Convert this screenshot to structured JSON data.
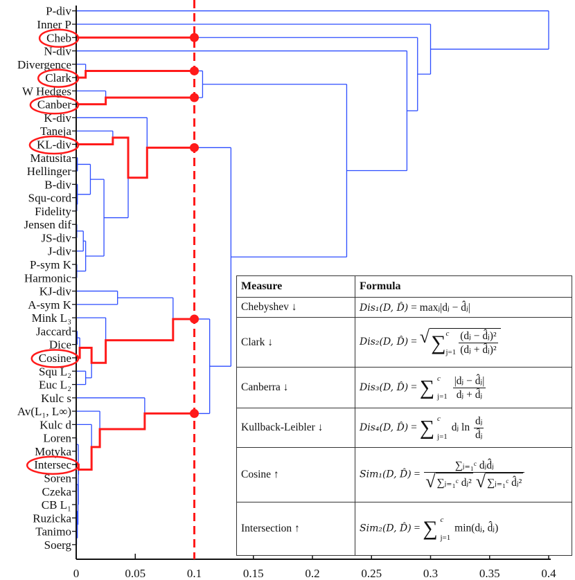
{
  "chart_data": {
    "type": "dendrogram",
    "orientation": "horizontal",
    "xlim": [
      0,
      0.4
    ],
    "xticks": [
      0,
      0.05,
      0.1,
      0.15,
      0.2,
      0.25,
      0.3,
      0.35,
      0.4
    ],
    "xtick_labels": [
      "0",
      "0.05",
      "0.1",
      "0.15",
      "0.2",
      "0.25",
      "0.3",
      "0.35",
      "0.4"
    ],
    "cutoff": 0.1,
    "line_color": "#2b4cff",
    "highlight_color": "#ff1a1a",
    "leaves": [
      "P-div",
      "Inner P",
      "Cheb",
      "N-div",
      "Divergence",
      "Clark",
      "W Hedges",
      "Canber",
      "K-div",
      "Taneja",
      "KL-div",
      "Matusita",
      "Hellinger",
      "B-div",
      "Squ-cord",
      "Fidelity",
      "Jensen  dif",
      "JS-div",
      "J-div",
      "P-sym  K",
      "Harmonic",
      "KJ-div",
      "A-sym  K",
      "Mink  L₃",
      "Jaccard",
      "Dice",
      "Cosine",
      "Squ  L₂",
      "Euc  L₂",
      "Kulc  s",
      "Av(L₁,  L∞)",
      "Kulc  d",
      "Loren",
      "Motyka",
      "Intersec",
      "Soren",
      "Czeka",
      "CB  L₁",
      "Ruzicka",
      "Tanimo",
      "Soerg"
    ],
    "highlighted": [
      "Cheb",
      "Clark",
      "Canber",
      "KL-div",
      "Cosine",
      "Intersec"
    ],
    "merges": [
      {
        "id": "c1",
        "children": [
          "Divergence",
          "Clark"
        ],
        "height": 0.008
      },
      {
        "id": "c2",
        "children": [
          "W Hedges",
          "Canber"
        ],
        "height": 0.025
      },
      {
        "id": "c3",
        "children": [
          "c1",
          "c2"
        ],
        "height": 0.107
      },
      {
        "id": "c4",
        "children": [
          "Taneja",
          "KL-div"
        ],
        "height": 0.031
      },
      {
        "id": "c5",
        "children": [
          "Matusita",
          "Hellinger"
        ],
        "height": 0.001
      },
      {
        "id": "c6",
        "children": [
          "Squ-cord",
          "Fidelity"
        ],
        "height": 0.0005
      },
      {
        "id": "c7",
        "children": [
          "B-div",
          "c6"
        ],
        "height": 0.001
      },
      {
        "id": "c8",
        "children": [
          "c5",
          "c7"
        ],
        "height": 0.012
      },
      {
        "id": "c9",
        "children": [
          "Jensen  dif",
          "JS-div"
        ],
        "height": 0.0005
      },
      {
        "id": "c10",
        "children": [
          "c9",
          "J-div"
        ],
        "height": 0.006
      },
      {
        "id": "c11",
        "children": [
          "P-sym  K",
          "Harmonic"
        ],
        "height": 0.0005
      },
      {
        "id": "c12",
        "children": [
          "c10",
          "c11"
        ],
        "height": 0.008
      },
      {
        "id": "c13",
        "children": [
          "c8",
          "c12"
        ],
        "height": 0.0235
      },
      {
        "id": "c14",
        "children": [
          "c4",
          "c13"
        ],
        "height": 0.044
      },
      {
        "id": "c15",
        "children": [
          "K-div",
          "c14"
        ],
        "height": 0.06
      },
      {
        "id": "c16",
        "children": [
          "KJ-div",
          "A-sym  K"
        ],
        "height": 0.035
      },
      {
        "id": "c17",
        "children": [
          "Jaccard",
          "Dice"
        ],
        "height": 0.0008
      },
      {
        "id": "c18",
        "children": [
          "c17",
          "Cosine"
        ],
        "height": 0.003
      },
      {
        "id": "c19",
        "children": [
          "Squ  L₂",
          "Euc  L₂"
        ],
        "height": 0.008
      },
      {
        "id": "c20",
        "children": [
          "c18",
          "c19"
        ],
        "height": 0.013
      },
      {
        "id": "c21",
        "children": [
          "Mink  L₃",
          "c20"
        ],
        "height": 0.025
      },
      {
        "id": "c22",
        "children": [
          "c16",
          "c21"
        ],
        "height": 0.082
      },
      {
        "id": "c23",
        "children": [
          "Loren",
          "Motyka"
        ],
        "height": 0.0003
      },
      {
        "id": "c24",
        "children": [
          "Soren",
          "Czeka"
        ],
        "height": 0.0003
      },
      {
        "id": "c25",
        "children": [
          "CB  L₁",
          "Ruzicka"
        ],
        "height": 0.0003
      },
      {
        "id": "c26",
        "children": [
          "Tanimo",
          "Soerg"
        ],
        "height": 0.0003
      },
      {
        "id": "c27",
        "children": [
          "c25",
          "c26"
        ],
        "height": 0.001
      },
      {
        "id": "c28",
        "children": [
          "c24",
          "c27"
        ],
        "height": 0.0015
      },
      {
        "id": "c29",
        "children": [
          "c23",
          "c28"
        ],
        "height": 0.0018
      },
      {
        "id": "c30",
        "children": [
          "Intersec",
          "c29"
        ],
        "height": 0.002
      },
      {
        "id": "c31",
        "children": [
          "Kulc  d",
          "c30"
        ],
        "height": 0.013
      },
      {
        "id": "c32",
        "children": [
          "Av(L₁,  L∞)",
          "c31"
        ],
        "height": 0.02
      },
      {
        "id": "c33",
        "children": [
          "Kulc  s",
          "c32"
        ],
        "height": 0.058
      },
      {
        "id": "c34",
        "children": [
          "c22",
          "c33"
        ],
        "height": 0.113
      },
      {
        "id": "c35",
        "children": [
          "c15",
          "c34"
        ],
        "height": 0.131
      },
      {
        "id": "c36",
        "children": [
          "c3",
          "c35"
        ],
        "height": 0.229
      },
      {
        "id": "c37",
        "children": [
          "N-div",
          "c36"
        ],
        "height": 0.28
      },
      {
        "id": "c38",
        "children": [
          "Cheb",
          "c37"
        ],
        "height": 0.289
      },
      {
        "id": "c39",
        "children": [
          "Inner P",
          "c38"
        ],
        "height": 0.3
      },
      {
        "id": "c40",
        "children": [
          "P-div",
          "c39"
        ],
        "height": 0.4
      }
    ]
  },
  "table": {
    "headers": [
      "Measure",
      "Formula"
    ],
    "rows": [
      {
        "measure": "Chebyshev ↓",
        "lhs": "Dis₁(D, D̂)",
        "eq": "=",
        "expr": "maxⱼ|dⱼ − d̂ⱼ|"
      },
      {
        "measure": "Clark ↓",
        "lhs": "Dis₂(D, D̂)",
        "eq": "=",
        "sum": "∑",
        "sup": "c",
        "sub": "j=1",
        "num": "(dⱼ − d̂ⱼ)²",
        "den": "(dⱼ + d̂ⱼ)²"
      },
      {
        "measure": "Canberra ↓",
        "lhs": "Dis₃(D, D̂)",
        "eq": "=",
        "sum": "∑",
        "sup": "c",
        "sub": "j=1",
        "num": "|dⱼ − d̂ⱼ|",
        "den": "dⱼ + d̂ⱼ"
      },
      {
        "measure": "Kullback-Leibler ↓",
        "lhs": "Dis₄(D, D̂)",
        "eq": "=",
        "sum": "∑",
        "sup": "c",
        "sub": "j=1",
        "pre": "dⱼ ln",
        "num": "dⱼ",
        "den": "d̂ⱼ"
      },
      {
        "measure": "Cosine ↑",
        "lhs": "Sim₁(D, D̂)",
        "eq": "=",
        "num": "∑ⱼ₌₁ᶜ dⱼd̂ⱼ",
        "den1": "∑ⱼ₌₁ᶜ dⱼ²",
        "den2": "∑ⱼ₌₁ᶜ d̂ⱼ²"
      },
      {
        "measure": "Intersection ↑",
        "lhs": "Sim₂(D, D̂)",
        "eq": "=",
        "sum": "∑",
        "sup": "c",
        "sub": "j=1",
        "expr": "min(dⱼ, d̂ⱼ)"
      }
    ]
  }
}
